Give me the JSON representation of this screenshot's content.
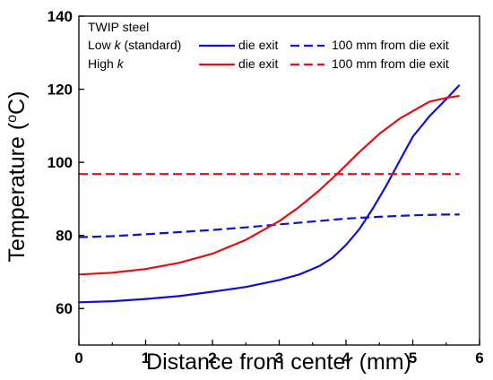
{
  "chart_data": {
    "type": "line",
    "xlabel": "Distance from center (mm)",
    "ylabel_main": "Temperature (",
    "ylabel_sup": "o",
    "ylabel_unit": "C)",
    "xlim": [
      0,
      6
    ],
    "ylim": [
      50,
      140
    ],
    "xticks": [
      0,
      1,
      2,
      3,
      4,
      5,
      6
    ],
    "yticks": [
      60,
      80,
      100,
      120,
      140
    ],
    "grid": false,
    "legend": {
      "placement": "top-left",
      "title": "TWIP steel",
      "row1_prefix": "Low ",
      "row1_k": "k",
      "row1_suffix": " (standard)",
      "row2_prefix": "High ",
      "row2_k": "k",
      "label_die_exit": "die exit",
      "label_100mm": "100 mm from die exit"
    },
    "colors": {
      "low_k": "#1010d0",
      "high_k": "#e01010"
    },
    "series": [
      {
        "name": "Low k (standard) die exit",
        "color": "#1010d0",
        "dash": "solid",
        "x": [
          0,
          0.5,
          1,
          1.5,
          2,
          2.5,
          3,
          3.3,
          3.6,
          3.8,
          4.0,
          4.2,
          4.4,
          4.6,
          4.8,
          5.0,
          5.25,
          5.5,
          5.7
        ],
        "y": [
          61.7,
          62.0,
          62.6,
          63.4,
          64.6,
          65.9,
          67.8,
          69.3,
          71.6,
          73.9,
          77.4,
          81.7,
          87.3,
          93.5,
          100.3,
          107.0,
          112.6,
          117.3,
          121.2
        ]
      },
      {
        "name": "Low k (standard) 100 mm from die exit",
        "color": "#1010d0",
        "dash": "dashed",
        "x": [
          0,
          0.5,
          1,
          1.5,
          2,
          2.5,
          3,
          3.5,
          4,
          4.5,
          5,
          5.5,
          5.7
        ],
        "y": [
          79.5,
          79.8,
          80.3,
          80.9,
          81.5,
          82.2,
          83.0,
          83.8,
          84.6,
          85.1,
          85.5,
          85.7,
          85.7
        ]
      },
      {
        "name": "High k die exit",
        "color": "#e01010",
        "dash": "solid",
        "x": [
          0,
          0.5,
          1,
          1.5,
          2,
          2.5,
          3,
          3.3,
          3.6,
          3.9,
          4.2,
          4.5,
          4.8,
          5.0,
          5.25,
          5.5,
          5.7
        ],
        "y": [
          69.3,
          69.8,
          70.8,
          72.5,
          75.0,
          78.8,
          83.9,
          87.8,
          92.3,
          97.4,
          102.8,
          107.8,
          111.9,
          114.0,
          116.6,
          117.6,
          118.2
        ]
      },
      {
        "name": "High k 100 mm from die exit",
        "color": "#e01010",
        "dash": "dashed",
        "x": [
          0,
          5.7
        ],
        "y": [
          96.8,
          96.8
        ]
      }
    ]
  }
}
